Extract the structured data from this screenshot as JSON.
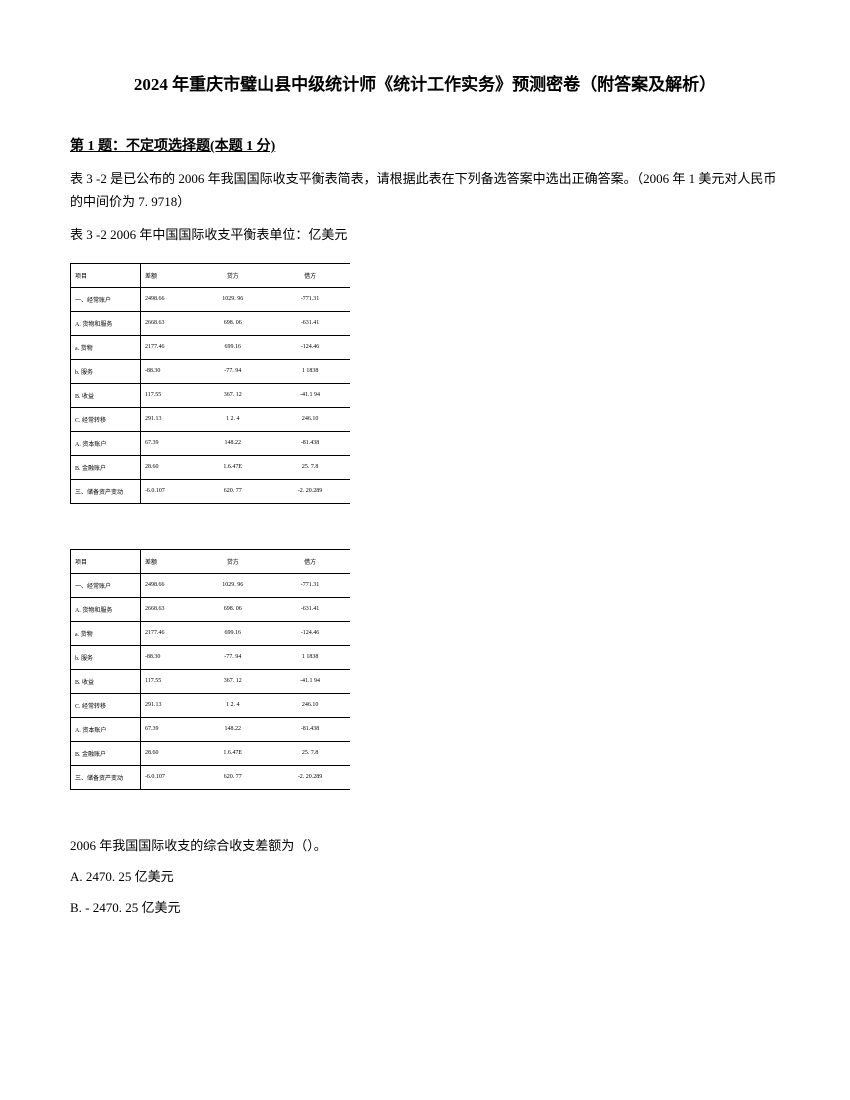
{
  "title": "2024 年重庆市璧山县中级统计师《统计工作实务》预测密卷（附答案及解析）",
  "questionHeader": "第 1 题：不定项选择题(本题 1 分)",
  "questionText": "表 3  -2 是已公布的 2006 年我国国际收支平衡表简表，请根据此表在下列备选答案中选出正确答案。（2006 年 1 美元对人民币的中间价为 7. 9718）",
  "tableCaption": "表 3  -2  2006 年中国国际收支平衡表单位：亿美元",
  "table": {
    "headers": [
      "项目",
      "差额",
      "贷方",
      "借方"
    ],
    "rows": [
      [
        "一、经常账户",
        "2498.66",
        "1029. 96",
        "-771.31"
      ],
      [
        "A. 货物和服务",
        "2668.63",
        "698. 06",
        "-631.41"
      ],
      [
        "a. 货物",
        "2177.46",
        "699.16",
        "-124.46"
      ],
      [
        "b. 服务",
        "-88.30",
        "-77. 94",
        "1 1838"
      ],
      [
        "B. 收益",
        "117.55",
        "367. 12",
        "-41.1 94"
      ],
      [
        "C. 经常转移",
        "291.13",
        "1 2. 4",
        "246.10"
      ],
      [
        "A. 资本账户",
        "67.39",
        "148.22",
        "-81.438"
      ],
      [
        "B. 金融账户",
        "28.60",
        "1.6.47E",
        "25. 7.8"
      ],
      [
        "三、储备资产变动",
        "-6.0.107",
        "620. 77",
        "-2. 20.289"
      ]
    ]
  },
  "subQuestion": "2006 年我国国际收支的综合收支差额为（）。",
  "options": [
    "A. 2470.  25 亿美元",
    "B. -  2470.  25 亿美元"
  ]
}
